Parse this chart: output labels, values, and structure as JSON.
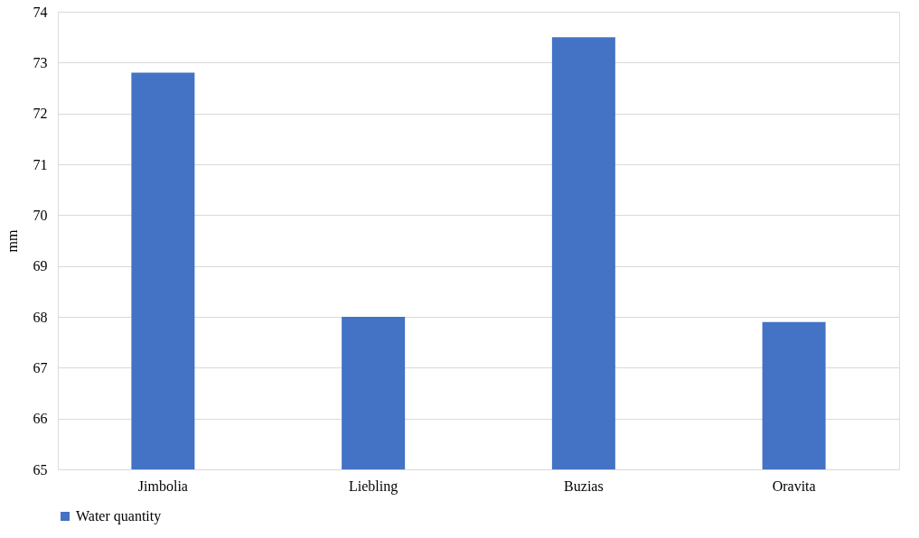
{
  "chart_data": {
    "type": "bar",
    "ylabel": "mm",
    "categories": [
      "Jimbolia",
      "Liebling",
      "Buzias",
      "Oravita"
    ],
    "series": [
      {
        "name": "Water quantity",
        "color": "#4472c4",
        "values": [
          72.8,
          68.0,
          73.5,
          67.9
        ]
      }
    ],
    "ylim": [
      65,
      74
    ],
    "yticks": [
      65,
      66,
      67,
      68,
      69,
      70,
      71,
      72,
      73,
      74
    ],
    "grid": "y",
    "legend": "bottom"
  }
}
